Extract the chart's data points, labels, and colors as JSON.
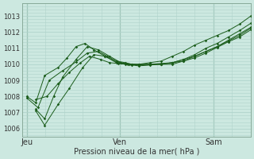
{
  "bg_color": "#cce8e0",
  "plot_bg_color": "#cce8e0",
  "grid_color": "#b0d4cc",
  "line_color": "#1a5c1a",
  "marker_color": "#1a5c1a",
  "ylabel_ticks": [
    1006,
    1007,
    1008,
    1009,
    1010,
    1011,
    1012,
    1013
  ],
  "xlabel": "Pression niveau de la mer( hPa )",
  "xtick_labels": [
    "Jeu",
    "Ven",
    "Sam"
  ],
  "xtick_positions": [
    0.0,
    0.4167,
    0.8333
  ],
  "xlim": [
    -0.02,
    1.0
  ],
  "ylim": [
    1005.5,
    1013.8
  ],
  "series": [
    {
      "x": [
        0.0,
        0.04,
        0.08,
        0.14,
        0.18,
        0.22,
        0.26,
        0.3,
        0.35,
        0.4,
        0.45,
        0.5,
        0.55,
        0.6,
        0.65,
        0.7,
        0.75,
        0.8,
        0.85,
        0.9,
        0.95,
        1.0
      ],
      "y": [
        1008.0,
        1007.6,
        1009.3,
        1009.8,
        1010.4,
        1011.1,
        1011.3,
        1010.9,
        1010.5,
        1010.1,
        1010.0,
        1010.0,
        1010.1,
        1010.2,
        1010.5,
        1010.8,
        1011.2,
        1011.5,
        1011.8,
        1012.1,
        1012.5,
        1013.0
      ]
    },
    {
      "x": [
        0.04,
        0.08,
        0.12,
        0.16,
        0.22,
        0.27,
        0.32,
        0.37,
        0.42,
        0.46,
        0.5,
        0.55,
        0.6,
        0.65,
        0.7,
        0.75,
        0.8,
        0.85,
        0.9,
        0.95,
        1.0
      ],
      "y": [
        1007.2,
        1006.6,
        1008.0,
        1009.2,
        1010.3,
        1011.1,
        1010.9,
        1010.5,
        1010.1,
        1010.0,
        1010.0,
        1010.0,
        1010.05,
        1010.1,
        1010.3,
        1010.6,
        1011.0,
        1011.3,
        1011.7,
        1012.1,
        1012.55
      ]
    },
    {
      "x": [
        0.04,
        0.08,
        0.14,
        0.19,
        0.25,
        0.3,
        0.35,
        0.4,
        0.44,
        0.47,
        0.5,
        0.55,
        0.6,
        0.65,
        0.7,
        0.75,
        0.8,
        0.85,
        0.9,
        0.95,
        1.0
      ],
      "y": [
        1007.1,
        1006.2,
        1007.5,
        1008.5,
        1009.8,
        1010.6,
        1010.5,
        1010.15,
        1010.05,
        1010.0,
        1009.95,
        1010.0,
        1010.0,
        1010.1,
        1010.2,
        1010.5,
        1010.8,
        1011.1,
        1011.5,
        1011.9,
        1012.3
      ]
    },
    {
      "x": [
        0.0,
        0.05,
        0.1,
        0.16,
        0.22,
        0.27,
        0.32,
        0.36,
        0.4,
        0.44,
        0.47,
        0.5,
        0.55,
        0.6,
        0.65,
        0.7,
        0.75,
        0.8,
        0.85,
        0.9,
        0.95,
        1.0
      ],
      "y": [
        1007.9,
        1007.3,
        1009.0,
        1009.6,
        1010.15,
        1010.7,
        1010.8,
        1010.5,
        1010.2,
        1010.1,
        1010.0,
        1009.95,
        1010.0,
        1010.0,
        1010.1,
        1010.3,
        1010.5,
        1010.8,
        1011.1,
        1011.45,
        1011.8,
        1012.25
      ]
    },
    {
      "x": [
        0.04,
        0.09,
        0.14,
        0.19,
        0.24,
        0.28,
        0.33,
        0.37,
        0.41,
        0.44,
        0.47,
        0.5,
        0.55,
        0.6,
        0.65,
        0.7,
        0.75,
        0.8,
        0.85,
        0.9,
        0.95,
        1.0
      ],
      "y": [
        1007.8,
        1008.0,
        1008.8,
        1009.5,
        1010.1,
        1010.5,
        1010.3,
        1010.1,
        1010.05,
        1010.0,
        1009.95,
        1009.9,
        1009.95,
        1010.0,
        1010.0,
        1010.2,
        1010.4,
        1010.7,
        1011.05,
        1011.4,
        1011.7,
        1012.15
      ]
    }
  ]
}
